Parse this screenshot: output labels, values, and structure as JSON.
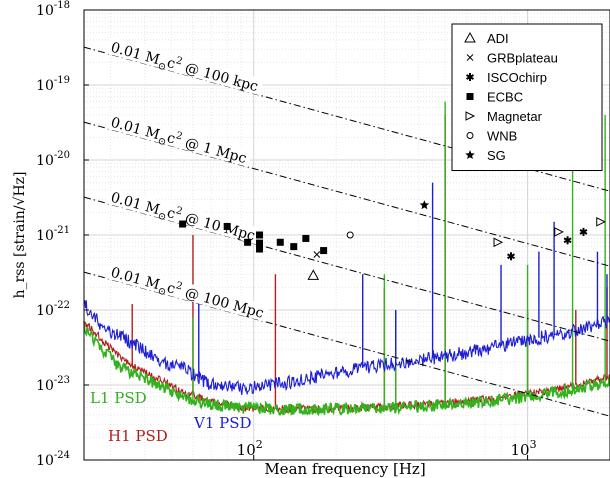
{
  "chart_data": {
    "type": "scatter",
    "xlabel": "Mean frequency [Hz]",
    "ylabel": "h_rss [strain/√Hz]",
    "xscale": "log",
    "yscale": "log",
    "xlim": [
      24,
      2000
    ],
    "ylim": [
      1e-24,
      1e-18
    ],
    "grid": true,
    "legend_position": "top-right",
    "x_ticks": [
      {
        "value": 100,
        "mantissa": "10",
        "exp": "2"
      },
      {
        "value": 1000,
        "mantissa": "10",
        "exp": "3"
      }
    ],
    "y_ticks": [
      {
        "value": 1e-18,
        "mantissa": "10",
        "exp": "-18"
      },
      {
        "value": 1e-19,
        "mantissa": "10",
        "exp": "-19"
      },
      {
        "value": 1e-20,
        "mantissa": "10",
        "exp": "-20"
      },
      {
        "value": 1e-21,
        "mantissa": "10",
        "exp": "-21"
      },
      {
        "value": 1e-22,
        "mantissa": "10",
        "exp": "-22"
      },
      {
        "value": 1e-23,
        "mantissa": "10",
        "exp": "-23"
      },
      {
        "value": 1e-24,
        "mantissa": "10",
        "exp": "-24"
      }
    ],
    "series": [
      {
        "name": "ADI",
        "marker": "triangle-up",
        "points": [
          [
            165,
            2.9e-22
          ]
        ]
      },
      {
        "name": "GRBplateau",
        "marker": "x",
        "points": [
          [
            170,
            5.5e-22
          ]
        ]
      },
      {
        "name": "ISCOchirp",
        "marker": "asterisk",
        "points": [
          [
            870,
            5.2e-22
          ],
          [
            1400,
            8.5e-22
          ],
          [
            1600,
            1.1e-21
          ]
        ]
      },
      {
        "name": "ECBC",
        "marker": "square",
        "points": [
          [
            55,
            1.4e-21
          ],
          [
            80,
            1.3e-21
          ],
          [
            95,
            8e-22
          ],
          [
            105,
            1e-21
          ],
          [
            105,
            7.8e-22
          ],
          [
            105,
            6.5e-22
          ],
          [
            125,
            8e-22
          ],
          [
            140,
            7e-22
          ],
          [
            155,
            9e-22
          ],
          [
            180,
            6.2e-22
          ]
        ]
      },
      {
        "name": "Magnetar",
        "marker": "triangle-right",
        "points": [
          [
            780,
            8e-22
          ],
          [
            1300,
            1.1e-21
          ],
          [
            1850,
            1.5e-21
          ]
        ]
      },
      {
        "name": "WNB",
        "marker": "circle",
        "points": [
          [
            225,
            1e-21
          ]
        ]
      },
      {
        "name": "SG",
        "marker": "star",
        "points": [
          [
            420,
            2.5e-21
          ]
        ]
      }
    ],
    "reference_lines": [
      {
        "text_prefix": "0.01 M",
        "text_sub": "⊙",
        "text_mid": "c",
        "text_sup": "2",
        "text_suffix": " @ 100 kpc",
        "slope": -1,
        "y_at_24": 3.2e-19
      },
      {
        "text_prefix": "0.01 M",
        "text_sub": "⊙",
        "text_mid": "c",
        "text_sup": "2",
        "text_suffix": " @ 1 Mpc",
        "slope": -1,
        "y_at_24": 3.2e-20
      },
      {
        "text_prefix": "0.01 M",
        "text_sub": "⊙",
        "text_mid": "c",
        "text_sup": "2",
        "text_suffix": " @ 10 Mpc",
        "slope": -1,
        "y_at_24": 3.2e-21
      },
      {
        "text_prefix": "0.01 M",
        "text_sub": "⊙",
        "text_mid": "c",
        "text_sup": "2",
        "text_suffix": " @ 100 Mpc",
        "slope": -1,
        "y_at_24": 3.2e-22
      }
    ],
    "psd_curves": [
      {
        "name": "H1 PSD",
        "label": "H1 PSD",
        "color": "#b21e1e",
        "points": [
          [
            24,
            7e-23
          ],
          [
            28,
            4e-23
          ],
          [
            32,
            2.5e-23
          ],
          [
            38,
            1.6e-23
          ],
          [
            45,
            1.2e-23
          ],
          [
            55,
            8e-24
          ],
          [
            70,
            6e-24
          ],
          [
            90,
            5e-24
          ],
          [
            120,
            4.8e-24
          ],
          [
            170,
            4.8e-24
          ],
          [
            250,
            5e-24
          ],
          [
            350,
            5.3e-24
          ],
          [
            500,
            5.8e-24
          ],
          [
            700,
            6.5e-24
          ],
          [
            1000,
            7.5e-24
          ],
          [
            1400,
            9.5e-24
          ],
          [
            2000,
            1.3e-23
          ]
        ],
        "lines": [
          [
            36,
            1.2e-22
          ],
          [
            60,
            1e-21
          ],
          [
            120,
            3e-22
          ],
          [
            300,
            2e-22
          ],
          [
            330,
            1e-22
          ],
          [
            500,
            4e-20
          ],
          [
            1000,
            1e-22
          ],
          [
            1500,
            1e-22
          ],
          [
            1950,
            2e-22
          ]
        ]
      },
      {
        "name": "L1 PSD",
        "label": "L1 PSD",
        "color": "#33b21e",
        "points": [
          [
            24,
            6e-23
          ],
          [
            28,
            3e-23
          ],
          [
            32,
            1.8e-23
          ],
          [
            38,
            1.3e-23
          ],
          [
            45,
            1e-23
          ],
          [
            55,
            7e-24
          ],
          [
            70,
            5.5e-24
          ],
          [
            90,
            5e-24
          ],
          [
            120,
            4.8e-24
          ],
          [
            170,
            4.8e-24
          ],
          [
            250,
            4.9e-24
          ],
          [
            350,
            5e-24
          ],
          [
            500,
            5.4e-24
          ],
          [
            700,
            6e-24
          ],
          [
            1000,
            7e-24
          ],
          [
            1400,
            8.5e-24
          ],
          [
            2000,
            1.1e-23
          ]
        ],
        "lines": [
          [
            60,
            8e-23
          ],
          [
            300,
            3e-22
          ],
          [
            330,
            1e-22
          ],
          [
            500,
            6e-20
          ],
          [
            1000,
            4e-22
          ],
          [
            1460,
            6e-20
          ],
          [
            1920,
            4e-20
          ]
        ]
      },
      {
        "name": "V1 PSD",
        "label": "V1 PSD",
        "color": "#1e1ed2",
        "points": [
          [
            24,
            1.2e-22
          ],
          [
            28,
            6e-23
          ],
          [
            32,
            4.5e-23
          ],
          [
            38,
            3.3e-23
          ],
          [
            45,
            2e-23
          ],
          [
            55,
            1.7e-23
          ],
          [
            62,
            1.3e-23
          ],
          [
            70,
            1e-23
          ],
          [
            90,
            9e-24
          ],
          [
            120,
            1e-23
          ],
          [
            170,
            1.3e-23
          ],
          [
            250,
            1.7e-23
          ],
          [
            350,
            2e-23
          ],
          [
            500,
            2.4e-23
          ],
          [
            700,
            3e-23
          ],
          [
            1000,
            4e-23
          ],
          [
            1400,
            5e-23
          ],
          [
            2000,
            7e-23
          ]
        ],
        "lines": [
          [
            63,
            1.3e-22
          ],
          [
            250,
            3e-22
          ],
          [
            330,
            1e-22
          ],
          [
            450,
            5e-21
          ],
          [
            800,
            4e-22
          ],
          [
            1100,
            6e-22
          ],
          [
            1250,
            1.5e-21
          ],
          [
            1800,
            6e-22
          ],
          [
            1950,
            3e-22
          ]
        ]
      }
    ]
  }
}
